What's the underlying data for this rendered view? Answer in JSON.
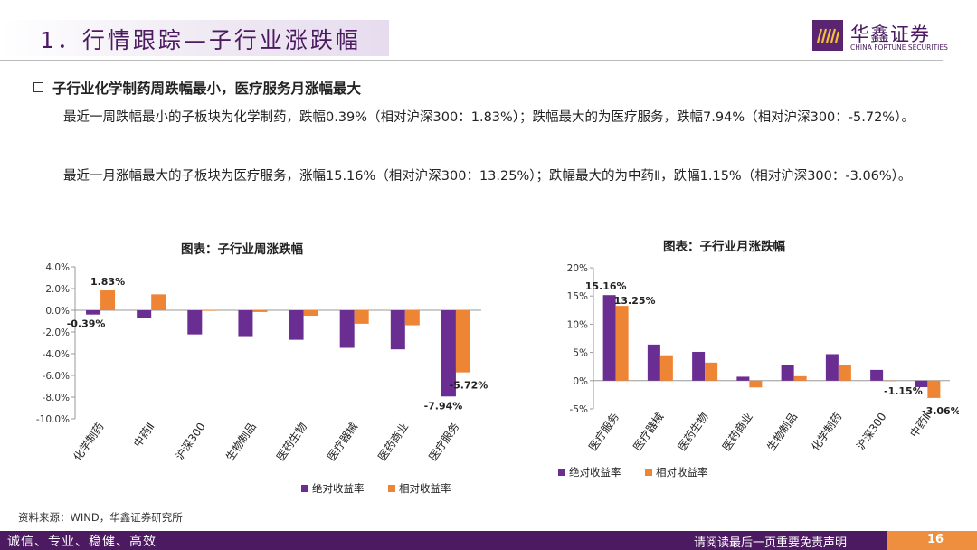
{
  "header": {
    "title": "1．行情跟踪—子行业涨跌幅",
    "logo_cn": "华鑫证券",
    "logo_en": "CHINA FORTUNE SECURITIES"
  },
  "section": {
    "bullet_title": "子行业化学制药周跌幅最小，医疗服务月涨幅最大",
    "para1": "最近一周跌幅最小的子板块为化学制药，跌幅0.39%（相对沪深300：1.83%）；跌幅最大的为医疗服务，跌幅7.94%（相对沪深300：-5.72%）。",
    "para2": "最近一月涨幅最大的子板块为医疗服务，涨幅15.16%（相对沪深300：13.25%）；跌幅最大的为中药Ⅱ，跌幅1.15%（相对沪深300：-3.06%）。"
  },
  "colors": {
    "absolute": "#6a2d91",
    "relative": "#ee8535",
    "brand": "#4b1a60",
    "accent": "#ee8e3f"
  },
  "chart_data": [
    {
      "type": "bar",
      "title": "图表：子行业周涨跌幅",
      "categories": [
        "化学制药",
        "中药Ⅱ",
        "沪深300",
        "生物制品",
        "医药生物",
        "医疗器械",
        "医药商业",
        "医疗服务"
      ],
      "series": [
        {
          "name": "绝对收益率",
          "values": [
            -0.39,
            -0.75,
            -2.22,
            -2.38,
            -2.72,
            -3.46,
            -3.6,
            -7.94
          ]
        },
        {
          "name": "相对收益率",
          "values": [
            1.83,
            1.47,
            0.0,
            -0.16,
            -0.5,
            -1.24,
            -1.38,
            -5.72
          ]
        }
      ],
      "ylim": [
        -10,
        4
      ],
      "yticks": [
        "4.0%",
        "2.0%",
        "0.0%",
        "-2.0%",
        "-4.0%",
        "-6.0%",
        "-8.0%",
        "-10.0%"
      ],
      "data_labels": [
        "1.83%",
        "-0.39%",
        "-7.94%",
        "-5.72%"
      ],
      "legend_position": "bottom"
    },
    {
      "type": "bar",
      "title": "图表：子行业月涨跌幅",
      "categories": [
        "医疗服务",
        "医疗器械",
        "医药生物",
        "医药商业",
        "生物制品",
        "化学制药",
        "沪深300",
        "中药Ⅱ"
      ],
      "series": [
        {
          "name": "绝对收益率",
          "values": [
            15.16,
            6.4,
            5.1,
            0.7,
            2.7,
            4.7,
            1.91,
            -1.15
          ]
        },
        {
          "name": "相对收益率",
          "values": [
            13.25,
            4.5,
            3.2,
            -1.2,
            0.8,
            2.8,
            0.0,
            -3.06
          ]
        }
      ],
      "ylim": [
        -5,
        20
      ],
      "yticks": [
        "20%",
        "15%",
        "10%",
        "5%",
        "0%",
        "-5%"
      ],
      "data_labels": [
        "15.16%",
        "13.25%",
        "-1.15%",
        "-3.06%"
      ],
      "legend_position": "bottom-left"
    }
  ],
  "source": "资料来源：WIND，华鑫证券研究所",
  "footer": {
    "left": "诚信、专业、稳健、高效",
    "right": "请阅读最后一页重要免责声明",
    "page": "16"
  }
}
